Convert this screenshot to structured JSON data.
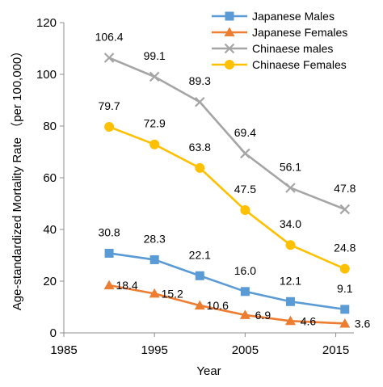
{
  "chart_data": {
    "type": "line",
    "xlabel": "Year",
    "ylabel": "Age-standardized Mortality Rate （per 100,000）",
    "xlim": [
      1985,
      2017
    ],
    "ylim": [
      0,
      120
    ],
    "xticks": [
      "1985",
      "1995",
      "2005",
      "2015"
    ],
    "xtick_values": [
      1985,
      1995,
      2005,
      2015
    ],
    "yticks": [
      "0",
      "20",
      "40",
      "60",
      "80",
      "100",
      "120"
    ],
    "ytick_values": [
      0,
      20,
      40,
      60,
      80,
      100,
      120
    ],
    "grid": false,
    "legend_position": "top-right",
    "x": [
      1990,
      1995,
      2000,
      2005,
      2010,
      2016
    ],
    "series": [
      {
        "name": "Japanese Males",
        "color": "#5b9bd5",
        "marker": "square",
        "values": [
          30.8,
          28.3,
          22.1,
          16.0,
          12.1,
          9.1
        ],
        "labels": [
          "30.8",
          "28.3",
          "22.1",
          "16.0",
          "12.1",
          "9.1"
        ]
      },
      {
        "name": "Japanese Females",
        "color": "#ed7d31",
        "marker": "triangle",
        "values": [
          18.4,
          15.2,
          10.6,
          6.9,
          4.6,
          3.6
        ],
        "labels": [
          "18.4",
          "15.2",
          "10.6",
          "6.9",
          "4.6",
          "3.6"
        ]
      },
      {
        "name": "Chinaese males",
        "color": "#a5a5a5",
        "marker": "x",
        "values": [
          106.4,
          99.1,
          89.3,
          69.4,
          56.1,
          47.8
        ],
        "labels": [
          "106.4",
          "99.1",
          "89.3",
          "69.4",
          "56.1",
          "47.8"
        ]
      },
      {
        "name": "Chinaese Females",
        "color": "#ffc000",
        "marker": "circle",
        "values": [
          79.7,
          72.9,
          63.8,
          47.5,
          34.0,
          24.8
        ],
        "labels": [
          "79.7",
          "72.9",
          "63.8",
          "47.5",
          "34.0",
          "24.8"
        ]
      }
    ]
  }
}
